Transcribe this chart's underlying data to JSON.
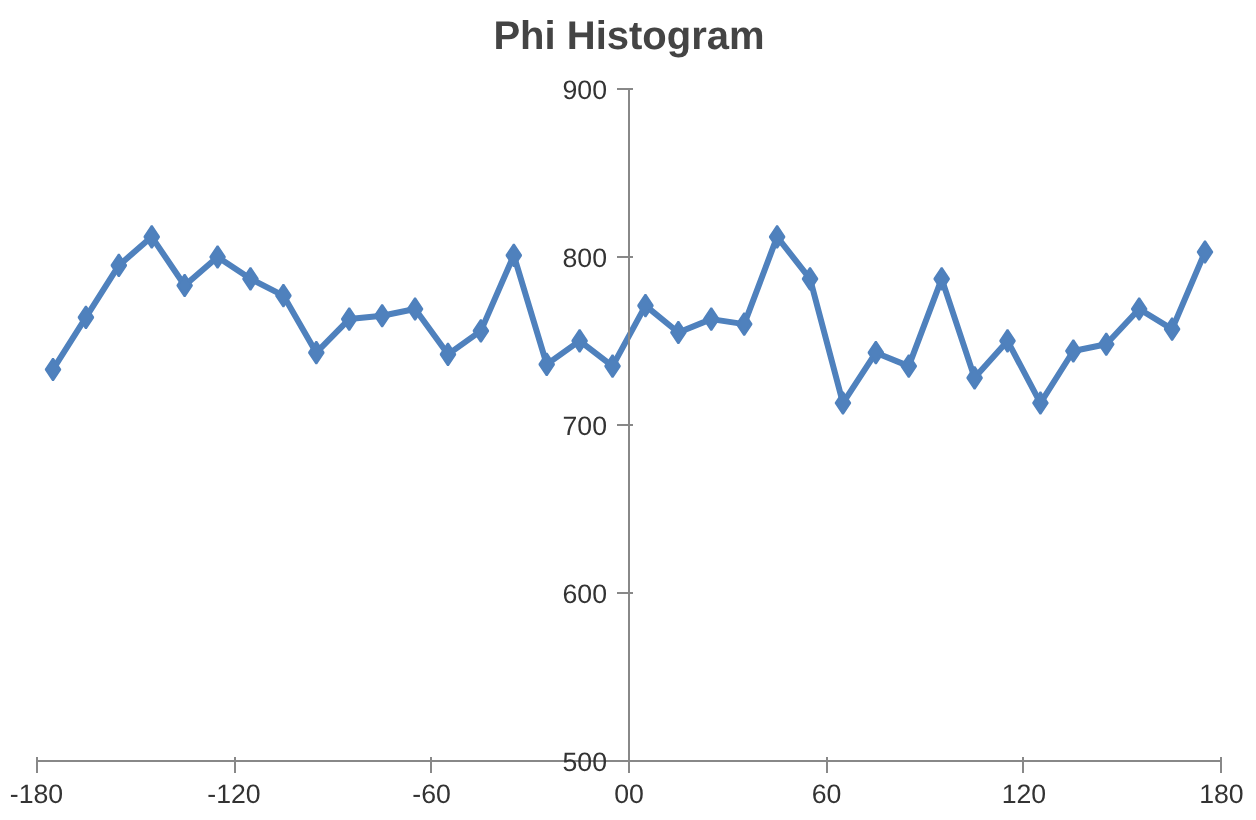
{
  "chart_data": {
    "type": "line",
    "title": "Phi Histogram",
    "x": [
      -175,
      -165,
      -155,
      -145,
      -135,
      -125,
      -115,
      -105,
      -95,
      -85,
      -75,
      -65,
      -55,
      -45,
      -35,
      -25,
      -15,
      -5,
      5,
      15,
      25,
      35,
      45,
      55,
      65,
      75,
      85,
      95,
      105,
      115,
      125,
      135,
      145,
      155,
      165,
      175
    ],
    "series": [
      {
        "color": "#4f81bd",
        "values": [
          733,
          764,
          795,
          812,
          783,
          800,
          787,
          777,
          743,
          763,
          765,
          769,
          742,
          756,
          801,
          736,
          750,
          735,
          771,
          755,
          763,
          760,
          812,
          787,
          713,
          743,
          735,
          787,
          728,
          750,
          713,
          744,
          748,
          769,
          757,
          803
        ]
      }
    ],
    "xlim": [
      -180,
      180
    ],
    "xticks": [
      -180,
      -120,
      -60,
      {
        "value": 0,
        "label": "00"
      },
      60,
      120,
      180
    ],
    "ylim": [
      500,
      900
    ],
    "yticks": [
      500,
      600,
      700,
      800,
      900
    ],
    "grid": false,
    "marker": "diamond",
    "line_style": "solid"
  }
}
